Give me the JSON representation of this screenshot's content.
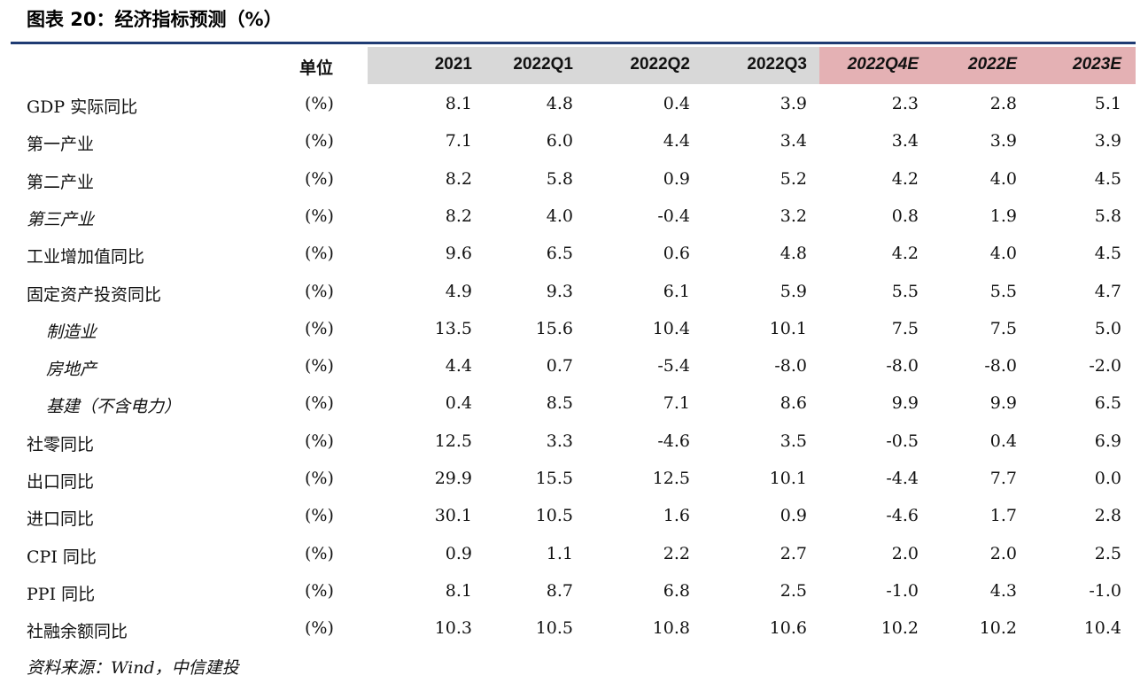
{
  "title": "图表 20：经济指标预测（%）",
  "header": {
    "unit": "单位",
    "columns": [
      "2021",
      "2022Q1",
      "2022Q2",
      "2022Q3",
      "2022Q4E",
      "2022E",
      "2023E"
    ]
  },
  "rows": [
    {
      "label": "GDP 实际同比",
      "unit": "(%)",
      "values": [
        "8.1",
        "4.8",
        "0.4",
        "3.9",
        "2.3",
        "2.8",
        "5.1"
      ]
    },
    {
      "label": "第一产业",
      "unit": "(%)",
      "values": [
        "7.1",
        "6.0",
        "4.4",
        "3.4",
        "3.4",
        "3.9",
        "3.9"
      ]
    },
    {
      "label": "第二产业",
      "unit": "(%)",
      "values": [
        "8.2",
        "5.8",
        "0.9",
        "5.2",
        "4.2",
        "4.0",
        "4.5"
      ]
    },
    {
      "label": "第三产业",
      "unit": "(%)",
      "values": [
        "8.2",
        "4.0",
        "-0.4",
        "3.2",
        "0.8",
        "1.9",
        "5.8"
      ],
      "italic": true
    },
    {
      "label": "工业增加值同比",
      "unit": "(%)",
      "values": [
        "9.6",
        "6.5",
        "0.6",
        "4.8",
        "4.2",
        "4.0",
        "4.5"
      ]
    },
    {
      "label": "固定资产投资同比",
      "unit": "(%)",
      "values": [
        "4.9",
        "9.3",
        "6.1",
        "5.9",
        "5.5",
        "5.5",
        "4.7"
      ]
    },
    {
      "label": "制造业",
      "unit": "(%)",
      "values": [
        "13.5",
        "15.6",
        "10.4",
        "10.1",
        "7.5",
        "7.5",
        "5.0"
      ],
      "italic": true,
      "sub": true
    },
    {
      "label": "房地产",
      "unit": "(%)",
      "values": [
        "4.4",
        "0.7",
        "-5.4",
        "-8.0",
        "-8.0",
        "-8.0",
        "-2.0"
      ],
      "italic": true,
      "sub": true
    },
    {
      "label": "基建（不含电力）",
      "unit": "(%)",
      "values": [
        "0.4",
        "8.5",
        "7.1",
        "8.6",
        "9.9",
        "9.9",
        "6.5"
      ],
      "italic": true,
      "sub": true
    },
    {
      "label": "社零同比",
      "unit": "(%)",
      "values": [
        "12.5",
        "3.3",
        "-4.6",
        "3.5",
        "-0.5",
        "0.4",
        "6.9"
      ]
    },
    {
      "label": "出口同比",
      "unit": "(%)",
      "values": [
        "29.9",
        "15.5",
        "12.5",
        "10.1",
        "-4.4",
        "7.7",
        "0.0"
      ]
    },
    {
      "label": "进口同比",
      "unit": "(%)",
      "values": [
        "30.1",
        "10.5",
        "1.6",
        "0.9",
        "-4.6",
        "1.7",
        "2.8"
      ]
    },
    {
      "label": "CPI 同比",
      "unit": "(%)",
      "values": [
        "0.9",
        "1.1",
        "2.2",
        "2.7",
        "2.0",
        "2.0",
        "2.5"
      ]
    },
    {
      "label": "PPI 同比",
      "unit": "(%)",
      "values": [
        "8.1",
        "8.7",
        "6.8",
        "2.5",
        "-1.0",
        "4.3",
        "-1.0"
      ]
    },
    {
      "label": "社融余额同比",
      "unit": "(%)",
      "values": [
        "10.3",
        "10.5",
        "10.8",
        "10.6",
        "10.2",
        "10.2",
        "10.4"
      ]
    }
  ],
  "source": "资料来源：Wind，中信建投",
  "colors": {
    "rule": "#1f3b73",
    "header_gray": "#d8d8d8",
    "header_pink": "#e4b1b4"
  }
}
